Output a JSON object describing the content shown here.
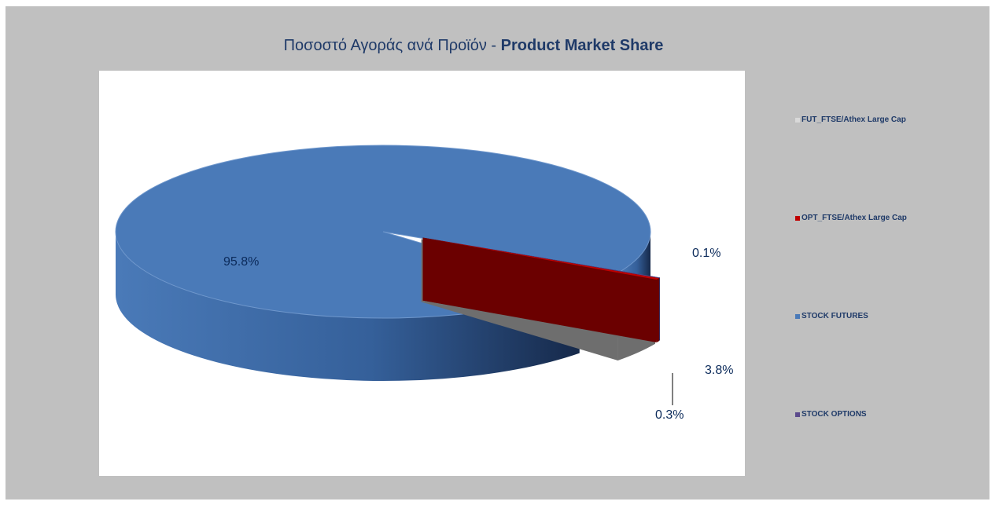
{
  "chart_data": {
    "type": "pie",
    "title_gr": "Ποσοστό Αγοράς ανά Προϊόν - ",
    "title_en": "Product Market Share",
    "slices": [
      {
        "name": "FUT_FTSE/Athex Large Cap",
        "value": 3.8,
        "label": "3.8%",
        "color": "#d9d9d9",
        "side_color": "#6e6e6e"
      },
      {
        "name": "OPT_FTSE/Athex Large Cap",
        "value": 0.3,
        "label": "0.3%",
        "color": "#c00000",
        "side_color": "#6b0000"
      },
      {
        "name": "STOCK FUTURES",
        "value": 95.8,
        "label": "95.8%",
        "color": "#4a7ab8",
        "side_color": "#2a4f80"
      },
      {
        "name": "STOCK OPTIONS",
        "value": 0.1,
        "label": "0.1%",
        "color": "#5b4a8c",
        "side_color": "#3a2d5e"
      }
    ],
    "legend_position": "right",
    "three_d": true
  }
}
